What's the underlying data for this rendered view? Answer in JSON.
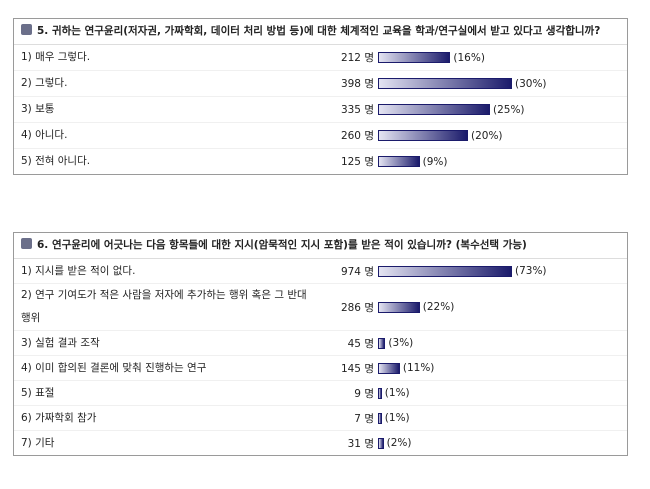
{
  "unit": "명",
  "questions": [
    {
      "title": "5. 귀하는 연구윤리(저자권, 가짜학회, 데이터 처리 방법 등)에 대한 체계적인 교육을 학과/연구실에서 받고 있다고 생각합니까?",
      "items": [
        {
          "label": "1) 매우 그렇다.",
          "count": 212,
          "percent": 16,
          "percent_label": "(16%)"
        },
        {
          "label": "2) 그렇다.",
          "count": 398,
          "percent": 30,
          "percent_label": "(30%)"
        },
        {
          "label": "3) 보통",
          "count": 335,
          "percent": 25,
          "percent_label": "(25%)"
        },
        {
          "label": "4) 아니다.",
          "count": 260,
          "percent": 20,
          "percent_label": "(20%)"
        },
        {
          "label": "5) 전혀 아니다.",
          "count": 125,
          "percent": 9,
          "percent_label": "(9%)"
        }
      ]
    },
    {
      "title": "6. 연구윤리에 어긋나는 다음 항목들에 대한 지시(암묵적인 지시 포함)를 받은 적이 있습니까? (복수선택 가능)",
      "items": [
        {
          "label": "1) 지시를 받은 적이 없다.",
          "count": 974,
          "percent": 73,
          "percent_label": "(73%)"
        },
        {
          "label": "2) 연구 기여도가 적은 사람을 저자에 추가하는 행위 혹은 그 반대 행위",
          "count": 286,
          "percent": 22,
          "percent_label": "(22%)"
        },
        {
          "label": "3) 실험 결과 조작",
          "count": 45,
          "percent": 3,
          "percent_label": "(3%)"
        },
        {
          "label": "4) 이미 합의된 결론에 맞춰 진행하는 연구",
          "count": 145,
          "percent": 11,
          "percent_label": "(11%)"
        },
        {
          "label": "5) 표절",
          "count": 9,
          "percent": 1,
          "percent_label": "(1%)"
        },
        {
          "label": "6) 가짜학회 참가",
          "count": 7,
          "percent": 1,
          "percent_label": "(1%)"
        },
        {
          "label": "7) 기타",
          "count": 31,
          "percent": 2,
          "percent_label": "(2%)"
        }
      ]
    }
  ]
}
